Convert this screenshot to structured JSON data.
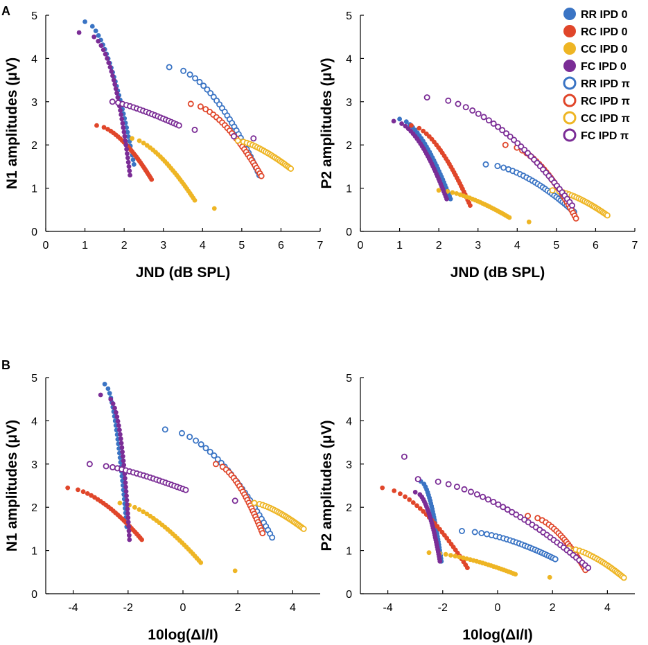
{
  "panel_labels": [
    "A",
    "B"
  ],
  "colors": {
    "RR": "#3a74c4",
    "RC": "#e0462a",
    "CC": "#eeb524",
    "FC": "#7b2d96"
  },
  "legend": [
    {
      "label": "RR IPD 0",
      "group": "RR",
      "filled": true
    },
    {
      "label": "RC IPD 0",
      "group": "RC",
      "filled": true
    },
    {
      "label": "CC IPD 0",
      "group": "CC",
      "filled": true
    },
    {
      "label": "FC IPD 0",
      "group": "FC",
      "filled": true
    },
    {
      "label": "RR IPD π",
      "group": "RR",
      "filled": false
    },
    {
      "label": "RC IPD π",
      "group": "RC",
      "filled": false
    },
    {
      "label": "CC IPD π",
      "group": "CC",
      "filled": false
    },
    {
      "label": "FC IPD π",
      "group": "FC",
      "filled": false
    }
  ],
  "chart_data": [
    {
      "id": "A-left",
      "type": "scatter",
      "xlabel": "JND (dB SPL)",
      "ylabel": "N1 amplitudes  (μV)",
      "xlim": [
        0,
        7
      ],
      "ylim": [
        0,
        5
      ],
      "xticks": [
        0,
        1,
        2,
        3,
        4,
        5,
        6,
        7
      ],
      "xtick_labels": [
        "0",
        "1",
        "2",
        "3",
        "4",
        "5",
        "6",
        "7"
      ],
      "yticks": [
        0,
        1,
        2,
        3,
        4,
        5
      ],
      "ytick_labels": [
        "0",
        "1",
        "2",
        "3",
        "4",
        "5"
      ],
      "series": [
        {
          "name": "RR IPD 0",
          "group": "RR",
          "filled": true,
          "curve": {
            "x_start": 1.0,
            "x_end": 2.25,
            "y_start": 4.85,
            "y_end": 1.55,
            "n": 32,
            "bend": 0.55
          }
        },
        {
          "name": "RC IPD 0",
          "group": "RC",
          "filled": true,
          "curve": {
            "x_start": 1.3,
            "x_end": 2.7,
            "y_start": 2.45,
            "y_end": 1.2,
            "n": 30,
            "bend": 0.6
          }
        },
        {
          "name": "CC IPD 0",
          "group": "CC",
          "filled": true,
          "curve": {
            "x_start": 2.2,
            "x_end": 3.8,
            "y_start": 2.15,
            "y_end": 0.72,
            "n": 28,
            "bend": 0.65
          },
          "extra": [
            [
              4.3,
              0.53
            ]
          ]
        },
        {
          "name": "FC IPD 0",
          "group": "FC",
          "filled": true,
          "curve": {
            "x_start": 0.85,
            "x_end": 2.15,
            "y_start": 4.6,
            "y_end": 1.3,
            "n": 34,
            "bend": 0.35
          }
        },
        {
          "name": "RR IPD π",
          "group": "RR",
          "filled": false,
          "curve": {
            "x_start": 3.15,
            "x_end": 5.45,
            "y_start": 3.8,
            "y_end": 1.3,
            "n": 30,
            "bend": 0.55
          }
        },
        {
          "name": "RC IPD π",
          "group": "RC",
          "filled": false,
          "curve": {
            "x_start": 3.7,
            "x_end": 5.5,
            "y_start": 2.95,
            "y_end": 1.28,
            "n": 28,
            "bend": 0.6
          }
        },
        {
          "name": "CC IPD π",
          "group": "CC",
          "filled": false,
          "curve": {
            "x_start": 4.9,
            "x_end": 6.25,
            "y_start": 2.1,
            "y_end": 1.45,
            "n": 26,
            "bend": 0.7
          }
        },
        {
          "name": "FC IPD π",
          "group": "FC",
          "filled": false,
          "curve": {
            "x_start": 1.7,
            "x_end": 3.4,
            "y_start": 3.0,
            "y_end": 2.45,
            "n": 22,
            "bend": 0.8
          },
          "extra": [
            [
              3.8,
              2.35
            ],
            [
              4.8,
              2.2
            ],
            [
              5.3,
              2.15
            ]
          ]
        }
      ]
    },
    {
      "id": "A-right",
      "type": "scatter",
      "xlabel": "JND (dB SPL)",
      "ylabel": "P2 amplitudes  (μV)",
      "xlim": [
        0,
        7
      ],
      "ylim": [
        0,
        5
      ],
      "xticks": [
        0,
        1,
        2,
        3,
        4,
        5,
        6,
        7
      ],
      "xtick_labels": [
        "0",
        "1",
        "2",
        "3",
        "4",
        "5",
        "6",
        "7"
      ],
      "yticks": [
        0,
        1,
        2,
        3,
        4,
        5
      ],
      "ytick_labels": [
        "0",
        "1",
        "2",
        "3",
        "4",
        "5"
      ],
      "series": [
        {
          "name": "RR IPD 0",
          "group": "RR",
          "filled": true,
          "curve": {
            "x_start": 1.0,
            "x_end": 2.3,
            "y_start": 2.6,
            "y_end": 0.75,
            "n": 30,
            "bend": 0.6
          }
        },
        {
          "name": "RC IPD 0",
          "group": "RC",
          "filled": true,
          "curve": {
            "x_start": 1.3,
            "x_end": 2.8,
            "y_start": 2.45,
            "y_end": 0.6,
            "n": 30,
            "bend": 0.6
          }
        },
        {
          "name": "CC IPD 0",
          "group": "CC",
          "filled": true,
          "curve": {
            "x_start": 2.0,
            "x_end": 3.8,
            "y_start": 0.95,
            "y_end": 0.32,
            "n": 26,
            "bend": 0.65
          },
          "extra": [
            [
              4.3,
              0.22
            ]
          ]
        },
        {
          "name": "FC IPD 0",
          "group": "FC",
          "filled": true,
          "curve": {
            "x_start": 0.85,
            "x_end": 2.2,
            "y_start": 2.55,
            "y_end": 0.75,
            "n": 32,
            "bend": 0.55
          }
        },
        {
          "name": "RR IPD π",
          "group": "RR",
          "filled": false,
          "curve": {
            "x_start": 3.2,
            "x_end": 5.45,
            "y_start": 1.55,
            "y_end": 0.45,
            "n": 30,
            "bend": 0.6
          }
        },
        {
          "name": "RC IPD π",
          "group": "RC",
          "filled": false,
          "curve": {
            "x_start": 3.7,
            "x_end": 5.5,
            "y_start": 2.0,
            "y_end": 0.3,
            "n": 28,
            "bend": 0.55
          }
        },
        {
          "name": "CC IPD π",
          "group": "CC",
          "filled": false,
          "curve": {
            "x_start": 4.9,
            "x_end": 6.3,
            "y_start": 0.95,
            "y_end": 0.37,
            "n": 26,
            "bend": 0.65
          }
        },
        {
          "name": "FC IPD π",
          "group": "FC",
          "filled": false,
          "curve": {
            "x_start": 1.7,
            "x_end": 5.4,
            "y_start": 3.1,
            "y_end": 0.6,
            "n": 34,
            "bend": 0.55
          }
        }
      ]
    },
    {
      "id": "B-left",
      "type": "scatter",
      "xlabel": "10log(ΔI/I)",
      "ylabel": "N1 amplitudes  (μV)",
      "xlim": [
        -5,
        5
      ],
      "ylim": [
        0,
        5
      ],
      "xticks": [
        -4,
        -2,
        0,
        2,
        4
      ],
      "xtick_labels": [
        "-4",
        "-2",
        "0",
        "2",
        "4"
      ],
      "yticks": [
        0,
        1,
        2,
        3,
        4,
        5
      ],
      "ytick_labels": [
        "0",
        "1",
        "2",
        "3",
        "4",
        "5"
      ],
      "series": [
        {
          "name": "RR IPD 0",
          "group": "RR",
          "filled": true,
          "curve": {
            "x_start": -2.85,
            "x_end": -2.05,
            "y_start": 4.85,
            "y_end": 1.55,
            "n": 32,
            "bend": 0.55
          }
        },
        {
          "name": "RC IPD 0",
          "group": "RC",
          "filled": true,
          "curve": {
            "x_start": -4.2,
            "x_end": -1.5,
            "y_start": 2.45,
            "y_end": 1.25,
            "n": 28,
            "bend": 0.6
          }
        },
        {
          "name": "CC IPD 0",
          "group": "CC",
          "filled": true,
          "curve": {
            "x_start": -2.3,
            "x_end": 0.65,
            "y_start": 2.1,
            "y_end": 0.72,
            "n": 28,
            "bend": 0.65
          },
          "extra": [
            [
              1.9,
              0.53
            ]
          ]
        },
        {
          "name": "FC IPD 0",
          "group": "FC",
          "filled": true,
          "curve": {
            "x_start": -3.0,
            "x_end": -1.95,
            "y_start": 4.6,
            "y_end": 1.25,
            "n": 34,
            "bend": 0.3
          }
        },
        {
          "name": "RR IPD π",
          "group": "RR",
          "filled": false,
          "curve": {
            "x_start": -0.65,
            "x_end": 3.25,
            "y_start": 3.8,
            "y_end": 1.3,
            "n": 30,
            "bend": 0.55
          }
        },
        {
          "name": "RC IPD π",
          "group": "RC",
          "filled": false,
          "curve": {
            "x_start": 1.2,
            "x_end": 2.9,
            "y_start": 3.0,
            "y_end": 1.4,
            "n": 26,
            "bend": 0.6
          }
        },
        {
          "name": "CC IPD π",
          "group": "CC",
          "filled": false,
          "curve": {
            "x_start": 2.6,
            "x_end": 4.4,
            "y_start": 2.1,
            "y_end": 1.5,
            "n": 26,
            "bend": 0.7
          }
        },
        {
          "name": "FC IPD π",
          "group": "FC",
          "filled": false,
          "curve": {
            "x_start": -2.8,
            "x_end": 0.1,
            "y_start": 2.95,
            "y_end": 2.4,
            "n": 24,
            "bend": 0.8
          },
          "extra": [
            [
              -3.4,
              3.0
            ],
            [
              1.9,
              2.15
            ]
          ]
        }
      ]
    },
    {
      "id": "B-right",
      "type": "scatter",
      "xlabel": "10log(ΔI/I)",
      "ylabel": "P2 amplitudes  (μV)",
      "xlim": [
        -5,
        5
      ],
      "ylim": [
        0,
        5
      ],
      "xticks": [
        -4,
        -2,
        0,
        2,
        4
      ],
      "xtick_labels": [
        "-4",
        "-2",
        "0",
        "2",
        "4"
      ],
      "yticks": [
        0,
        1,
        2,
        3,
        4,
        5
      ],
      "ytick_labels": [
        "0",
        "1",
        "2",
        "3",
        "4",
        "5"
      ],
      "series": [
        {
          "name": "RR IPD 0",
          "group": "RR",
          "filled": true,
          "curve": {
            "x_start": -2.8,
            "x_end": -2.05,
            "y_start": 2.6,
            "y_end": 0.75,
            "n": 30,
            "bend": 0.55
          }
        },
        {
          "name": "RC IPD 0",
          "group": "RC",
          "filled": true,
          "curve": {
            "x_start": -4.2,
            "x_end": -1.1,
            "y_start": 2.45,
            "y_end": 0.6,
            "n": 28,
            "bend": 0.6
          }
        },
        {
          "name": "CC IPD 0",
          "group": "CC",
          "filled": true,
          "curve": {
            "x_start": -2.5,
            "x_end": 0.65,
            "y_start": 0.95,
            "y_end": 0.45,
            "n": 26,
            "bend": 0.65
          },
          "extra": [
            [
              1.9,
              0.38
            ]
          ]
        },
        {
          "name": "FC IPD 0",
          "group": "FC",
          "filled": true,
          "curve": {
            "x_start": -3.0,
            "x_end": -2.1,
            "y_start": 2.35,
            "y_end": 0.75,
            "n": 30,
            "bend": 0.5
          }
        },
        {
          "name": "RR IPD π",
          "group": "RR",
          "filled": false,
          "curve": {
            "x_start": -1.3,
            "x_end": 2.1,
            "y_start": 1.45,
            "y_end": 0.8,
            "n": 28,
            "bend": 0.6
          }
        },
        {
          "name": "RC IPD π",
          "group": "RC",
          "filled": false,
          "curve": {
            "x_start": 1.1,
            "x_end": 3.2,
            "y_start": 1.8,
            "y_end": 0.55,
            "n": 26,
            "bend": 0.55
          }
        },
        {
          "name": "CC IPD π",
          "group": "CC",
          "filled": false,
          "curve": {
            "x_start": 2.6,
            "x_end": 4.6,
            "y_start": 1.05,
            "y_end": 0.37,
            "n": 26,
            "bend": 0.65
          }
        },
        {
          "name": "FC IPD π",
          "group": "FC",
          "filled": false,
          "curve": {
            "x_start": -2.9,
            "x_end": 3.3,
            "y_start": 2.65,
            "y_end": 0.6,
            "n": 36,
            "bend": 0.6
          },
          "extra": [
            [
              -3.4,
              3.17
            ]
          ]
        }
      ]
    }
  ]
}
